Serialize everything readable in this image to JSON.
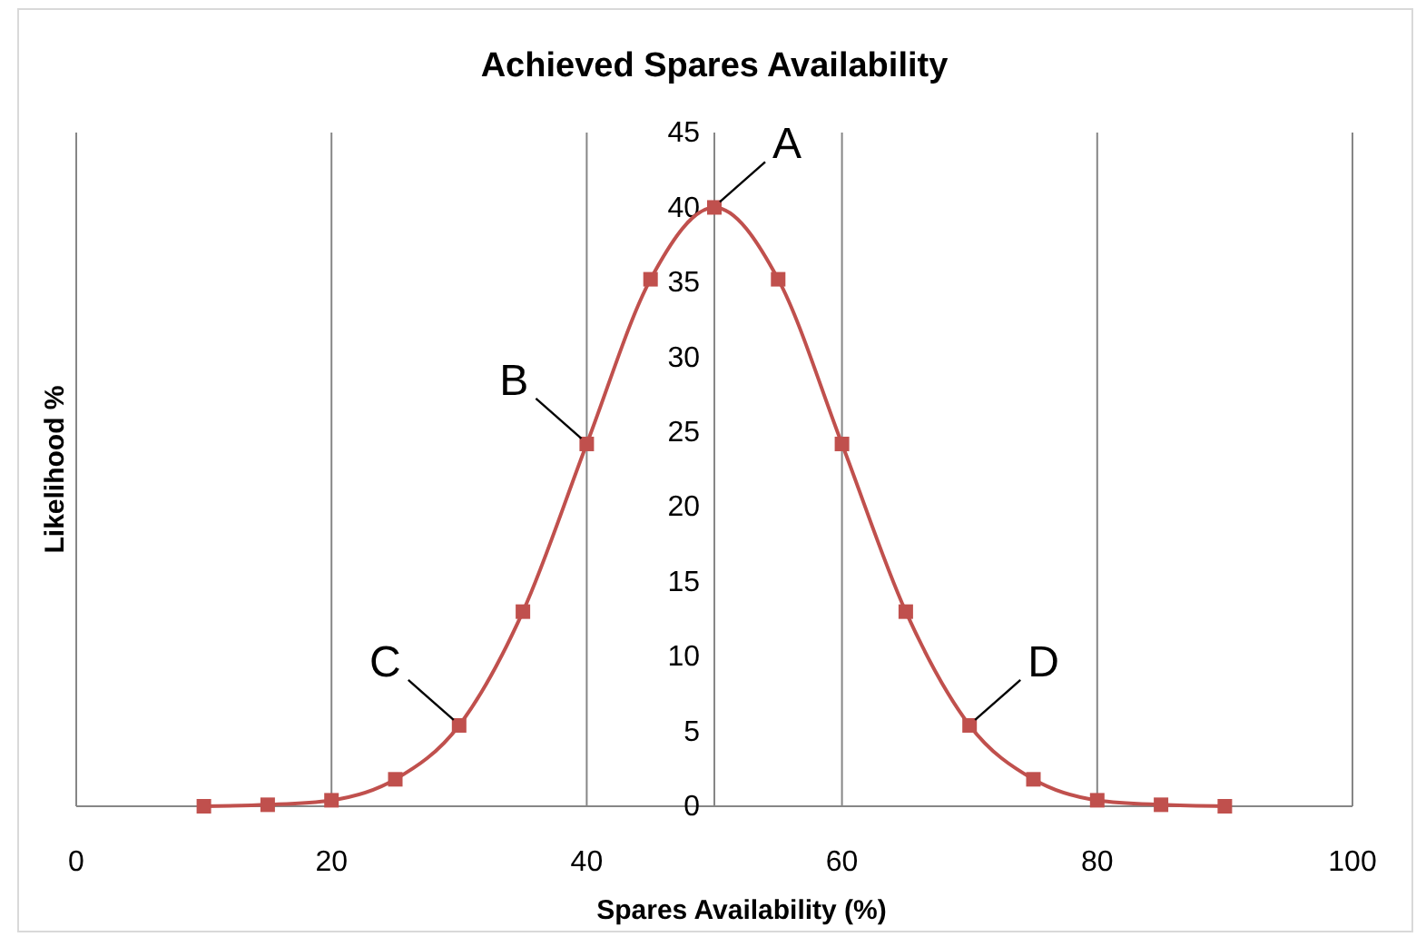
{
  "chart_data": {
    "type": "line",
    "title": "Achieved Spares Availability",
    "xlabel": "Spares Availability (%)",
    "ylabel": "Likelihood %",
    "x": [
      10,
      15,
      20,
      25,
      30,
      35,
      40,
      45,
      50,
      55,
      60,
      65,
      70,
      75,
      80,
      85,
      90
    ],
    "series": [
      {
        "color": "#c0504d",
        "values": [
          0,
          0.1,
          0.4,
          1.8,
          5.4,
          13,
          24.2,
          35.2,
          40,
          35.2,
          24.2,
          13,
          5.4,
          1.8,
          0.4,
          0.1,
          0
        ]
      }
    ],
    "xlim": [
      0,
      100
    ],
    "xticks": [
      0,
      20,
      40,
      60,
      80,
      100
    ],
    "ylim": [
      0,
      45
    ],
    "yticks": [
      0,
      5,
      10,
      15,
      20,
      25,
      30,
      35,
      40,
      45
    ],
    "grid": "x",
    "marker": "square",
    "line_style": "solid",
    "annotations": [
      {
        "text": "A",
        "x": 50,
        "y": 40
      },
      {
        "text": "B",
        "x": 40,
        "y": 24.2
      },
      {
        "text": "C",
        "x": 30,
        "y": 5.4
      },
      {
        "text": "D",
        "x": 70,
        "y": 5.4
      }
    ]
  }
}
